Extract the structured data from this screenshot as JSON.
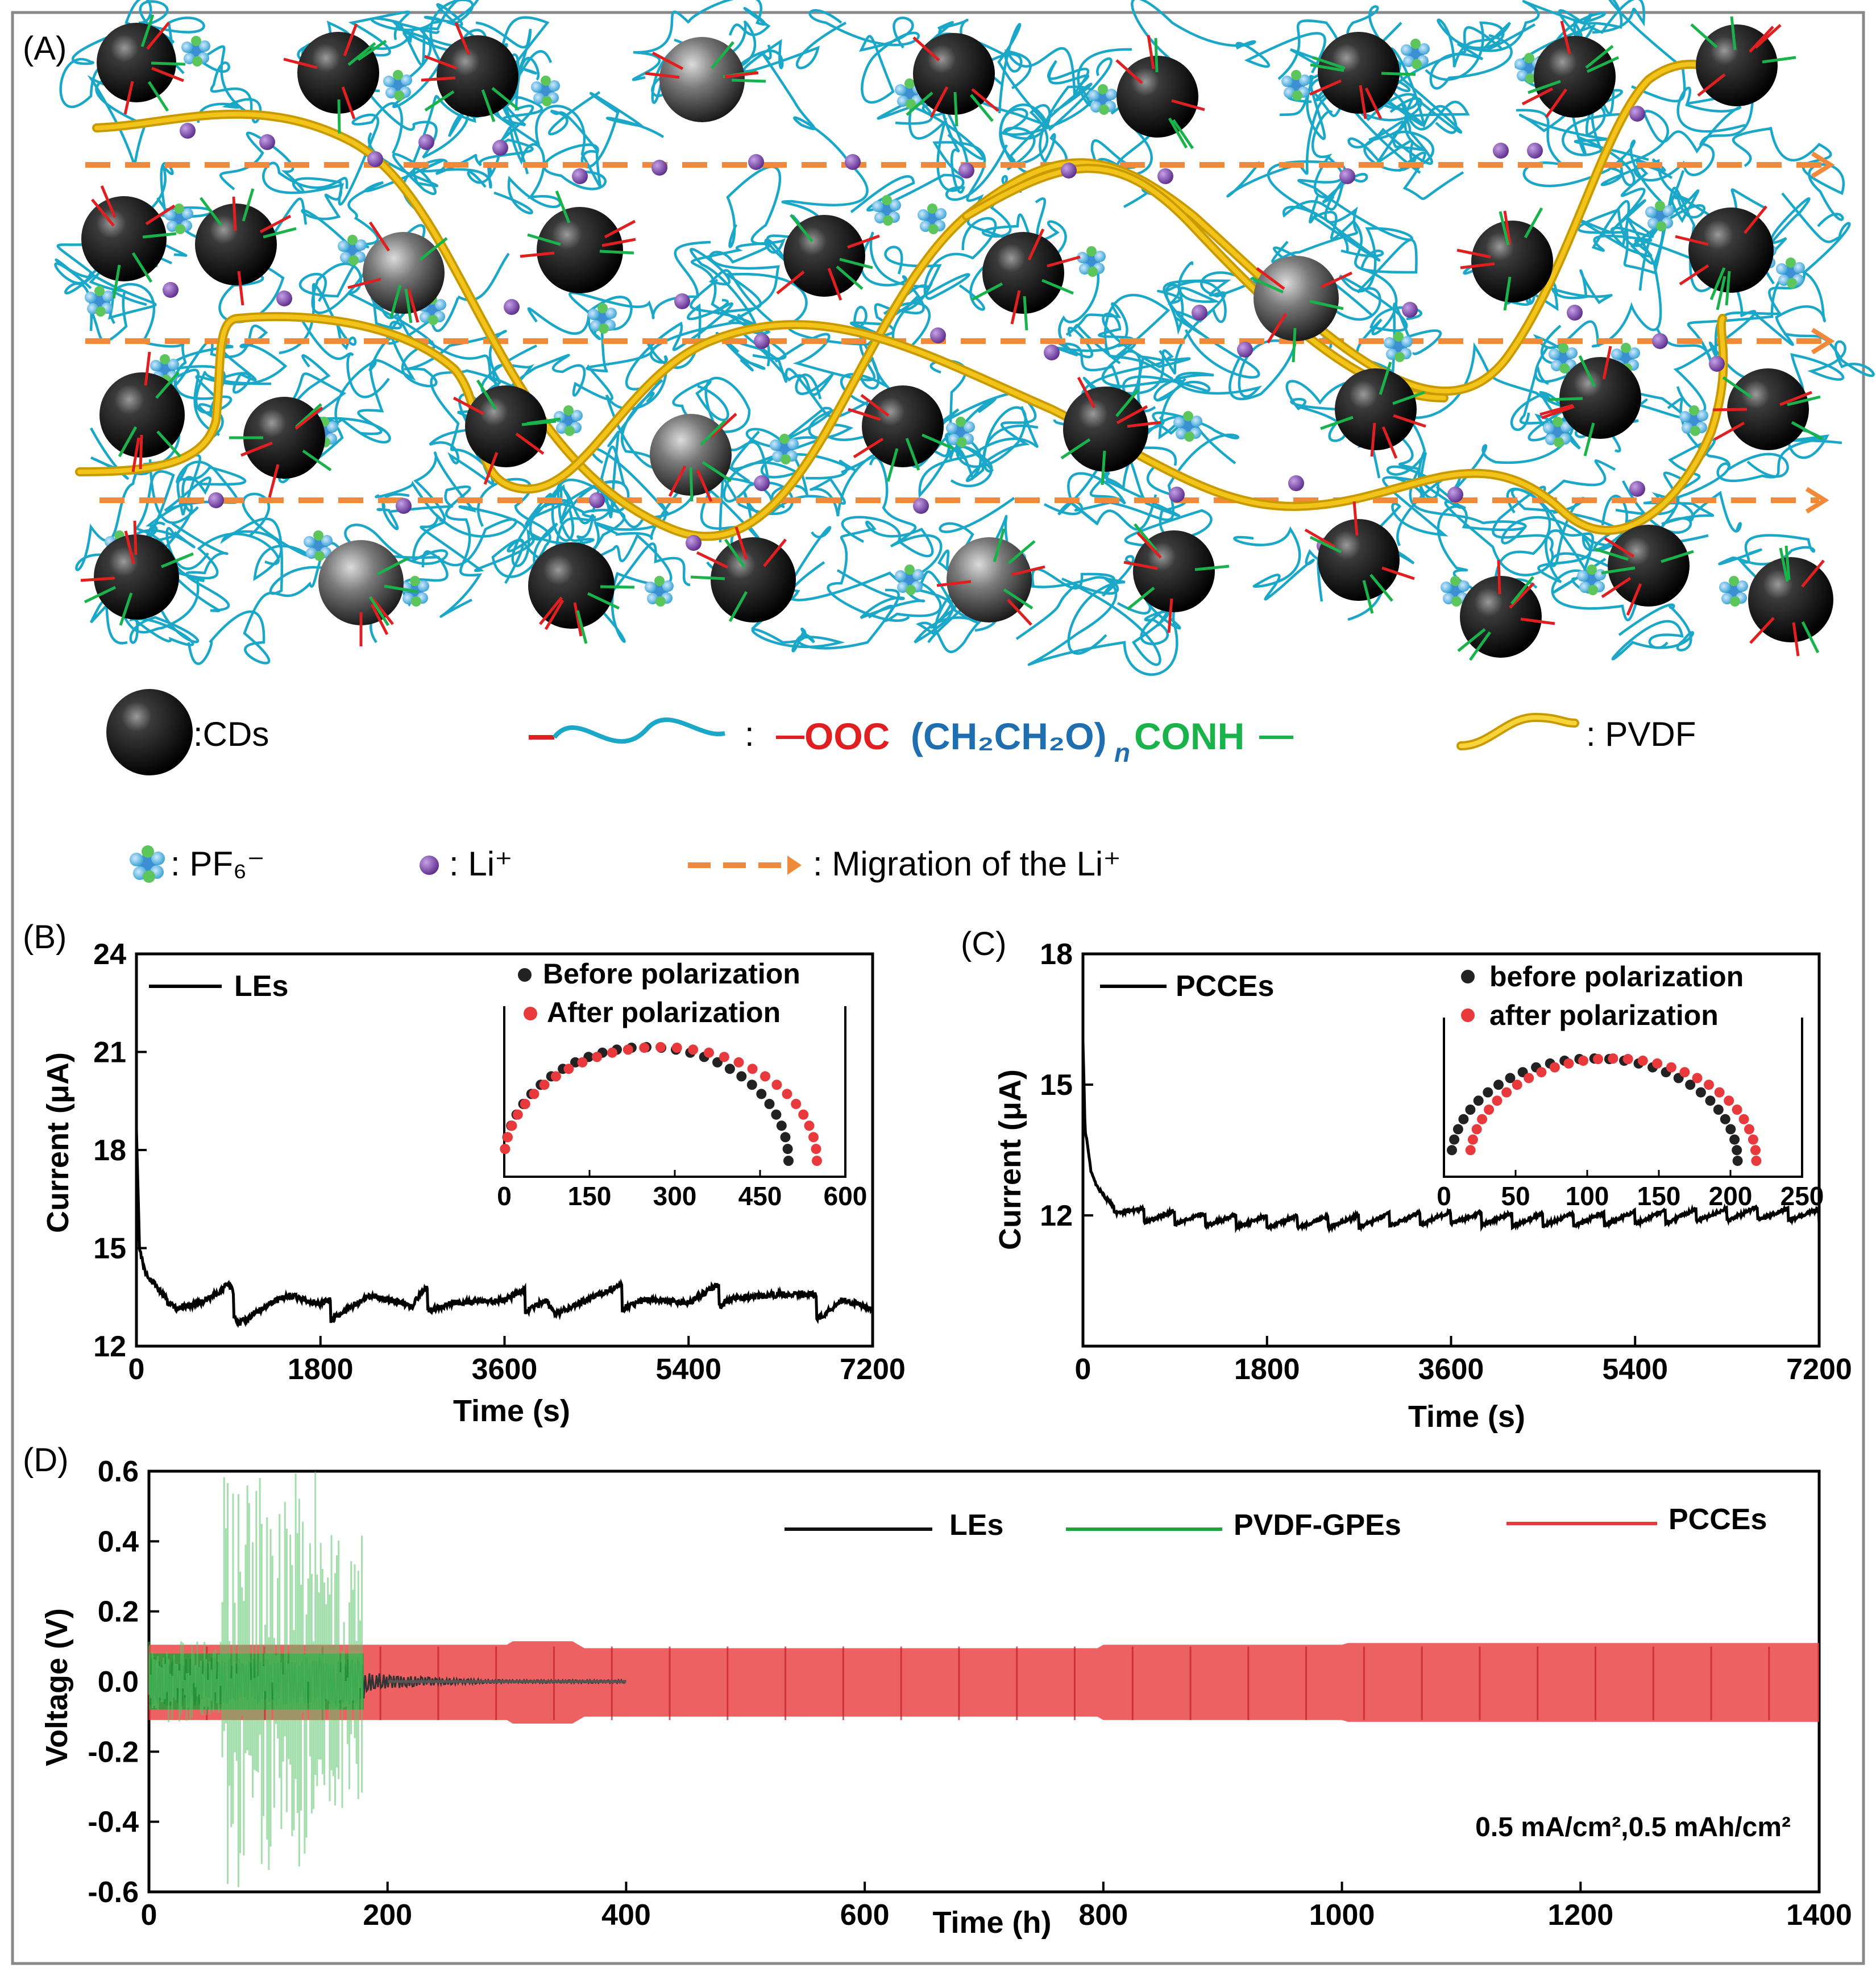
{
  "panel_labels": {
    "a": "(A)",
    "b": "(B)",
    "c": "(C)",
    "d": "(D)"
  },
  "colors": {
    "chain": "#1aa7c8",
    "chain_red": "#e02020",
    "chain_green": "#19b24b",
    "pvdf": "#f2c318",
    "li": "#7b3fa6",
    "arrow": "#f08a3a",
    "les": "#111111",
    "pvdf_gpe": "#1fa23a",
    "pcce": "#e8393c"
  },
  "schematic": {
    "legend": {
      "cds": ":CDs",
      "chain_sep": ":",
      "formula_left": "OOC",
      "formula_paren": "(CH₂CH₂O)",
      "formula_n": "n",
      "formula_right": "CONH",
      "pvdf": ": PVDF",
      "pf6": ": PF₆⁻",
      "li": ": Li⁺",
      "migration": ": Migration of the Li⁺"
    }
  },
  "chart_data": [
    {
      "id": "B",
      "type": "line",
      "title": "",
      "xlabel": "Time (s)",
      "ylabel": "Current (μA)",
      "xlim": [
        0,
        7200
      ],
      "ylim": [
        12,
        24
      ],
      "xticks": [
        "0",
        "1800",
        "3600",
        "5400",
        "7200"
      ],
      "yticks": [
        "12",
        "15",
        "18",
        "21",
        "24"
      ],
      "series": [
        {
          "name": "LEs",
          "color": "#111111",
          "x": [
            0,
            30,
            80,
            150,
            250,
            400,
            600,
            800,
            900,
            1000,
            1300,
            1500,
            1800,
            2100,
            2300,
            2700,
            2800,
            3100,
            3600,
            4000,
            4100,
            4500,
            5000,
            5400,
            5800,
            6300,
            6700,
            6900,
            7200
          ],
          "y": [
            18.7,
            15.0,
            14.3,
            14.0,
            13.6,
            13.2,
            13.2,
            13.4,
            13.6,
            13.0,
            13.4,
            13.5,
            13.0,
            13.4,
            13.6,
            13.0,
            13.4,
            13.5,
            13.2,
            13.6,
            13.1,
            13.4,
            13.6,
            13.2,
            13.7,
            13.5,
            13.2,
            13.6,
            13.1
          ]
        }
      ],
      "inset": {
        "xticks": [
          "0",
          "150",
          "300",
          "450",
          "600"
        ],
        "xlim": [
          0,
          600
        ],
        "series": [
          {
            "name": "Before polarization",
            "color": "#222222",
            "center": 250,
            "radius": 250
          },
          {
            "name": "After polarization",
            "color": "#e8393c",
            "center": 275,
            "radius": 275
          }
        ]
      }
    },
    {
      "id": "C",
      "type": "line",
      "title": "",
      "xlabel": "Time (s)",
      "ylabel": "Current (μA)",
      "xlim": [
        0,
        7200
      ],
      "ylim": [
        9,
        18
      ],
      "xticks": [
        "0",
        "1800",
        "3600",
        "5400",
        "7200"
      ],
      "yticks": [
        "12",
        "15",
        "18"
      ],
      "series": [
        {
          "name": "PCCEs",
          "color": "#111111",
          "x": [
            0,
            20,
            80,
            150,
            300,
            600,
            1200,
            1800,
            2400,
            3000,
            3600,
            4200,
            4800,
            5400,
            6000,
            6600,
            7200
          ],
          "y": [
            16.0,
            14.0,
            13.0,
            12.6,
            12.2,
            12.0,
            11.9,
            11.85,
            11.85,
            11.9,
            11.95,
            11.9,
            11.9,
            11.95,
            12.0,
            12.05,
            12.0
          ]
        }
      ],
      "inset": {
        "xticks": [
          "0",
          "50",
          "100",
          "150",
          "200",
          "250"
        ],
        "xlim": [
          0,
          250
        ],
        "series": [
          {
            "name": "before polarization",
            "color": "#222222",
            "center": 105,
            "radius": 100
          },
          {
            "name": "after polarization",
            "color": "#e8393c",
            "center": 118,
            "radius": 100
          }
        ]
      }
    },
    {
      "id": "D",
      "type": "area",
      "title": "",
      "xlabel": "Time (h)",
      "ylabel": "Voltage (V)",
      "xlim": [
        0,
        1400
      ],
      "ylim": [
        -0.6,
        0.6
      ],
      "xticks": [
        "0",
        "200",
        "400",
        "600",
        "800",
        "1000",
        "1200",
        "1400"
      ],
      "yticks": [
        "-0.6",
        "-0.4",
        "-0.2",
        "0.0",
        "0.2",
        "0.4",
        "0.6"
      ],
      "annotation": "0.5 mA/cm²,0.5 mAh/cm²",
      "series": [
        {
          "name": "LEs",
          "color": "#111111",
          "x_end": 400,
          "amplitude": [
            0.08,
            0.05,
            0.02,
            0.01
          ]
        },
        {
          "name": "PVDF-GPEs",
          "color": "#1fa23a",
          "x_end": 180,
          "amplitude": [
            0.08,
            0.08
          ],
          "spike_max": 0.6
        },
        {
          "name": "PCCEs",
          "color": "#e8393c",
          "x_end": 1400,
          "amplitude": [
            0.1,
            0.11,
            0.09,
            0.1,
            0.11
          ]
        }
      ]
    }
  ]
}
